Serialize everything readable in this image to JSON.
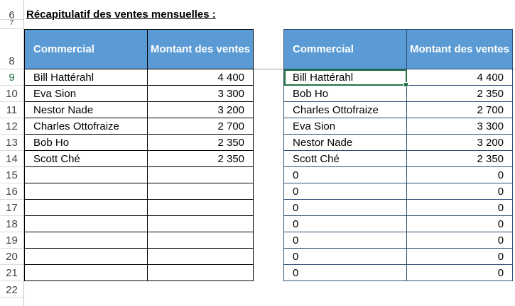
{
  "title": "Récapitulatif des ventes mensuelles :",
  "row_numbers": [
    "6",
    "7",
    "8",
    "9",
    "10",
    "11",
    "12",
    "13",
    "14",
    "15",
    "16",
    "17",
    "18",
    "19",
    "20",
    "21",
    "22"
  ],
  "table_left": {
    "headers": [
      "Commercial",
      "Montant des ventes"
    ],
    "rows": [
      [
        "Bill Hattérahl",
        "4 400"
      ],
      [
        "Eva Sion",
        "3 300"
      ],
      [
        "Nestor Nade",
        "3 200"
      ],
      [
        "Charles Ottofraize",
        "2 700"
      ],
      [
        "Bob Ho",
        "2 350"
      ],
      [
        "Scott Ché",
        "2 350"
      ],
      [
        "",
        ""
      ],
      [
        "",
        ""
      ],
      [
        "",
        ""
      ],
      [
        "",
        ""
      ],
      [
        "",
        ""
      ],
      [
        "",
        ""
      ],
      [
        "",
        ""
      ]
    ]
  },
  "table_right": {
    "headers": [
      "Commercial",
      "Montant des ventes"
    ],
    "rows": [
      [
        "Bill Hattérahl",
        "4 400"
      ],
      [
        "Bob Ho",
        "2 350"
      ],
      [
        "Charles Ottofraize",
        "2 700"
      ],
      [
        "Eva Sion",
        "3 300"
      ],
      [
        "Nestor Nade",
        "3 200"
      ],
      [
        "Scott Ché",
        "2 350"
      ],
      [
        "0",
        "0"
      ],
      [
        "0",
        "0"
      ],
      [
        "0",
        "0"
      ],
      [
        "0",
        "0"
      ],
      [
        "0",
        "0"
      ],
      [
        "0",
        "0"
      ],
      [
        "0",
        "0"
      ]
    ]
  },
  "colors": {
    "header_bg": "#5b9bd5",
    "selection": "#217346"
  }
}
